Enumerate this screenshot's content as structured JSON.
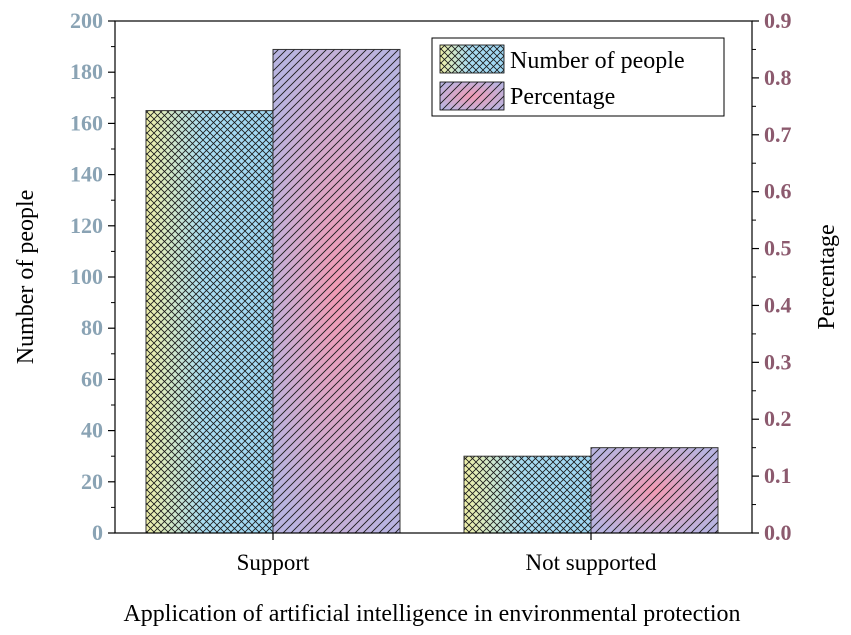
{
  "chart_data": {
    "type": "bar",
    "categories": [
      "Support",
      "Not supported"
    ],
    "series": [
      {
        "name": "Number of people",
        "axis": "left",
        "values": [
          165,
          30
        ]
      },
      {
        "name": "Percentage",
        "axis": "right",
        "values": [
          0.85,
          0.15
        ]
      }
    ],
    "xlabel": "Application of artificial intelligence in environmental protection",
    "ylabel_left": "Number of people",
    "ylabel_right": "Percentage",
    "ylim_left": [
      0,
      200
    ],
    "ylim_right": [
      0,
      0.9
    ],
    "yticks_left": [
      "0",
      "20",
      "40",
      "60",
      "80",
      "100",
      "120",
      "140",
      "160",
      "180",
      "200"
    ],
    "yticks_right": [
      "0.0",
      "0.1",
      "0.2",
      "0.3",
      "0.4",
      "0.5",
      "0.6",
      "0.7",
      "0.8",
      "0.9"
    ],
    "legend_position": "top-right",
    "grid": false,
    "colors": {
      "left_axis": "#8aa3b4",
      "right_axis": "#8c5a6e",
      "number_fill_a": "#9fd6f2",
      "number_fill_b": "#f0f0a8",
      "percentage_fill_a": "#f29bb4",
      "percentage_fill_b": "#b9b4e0"
    }
  }
}
